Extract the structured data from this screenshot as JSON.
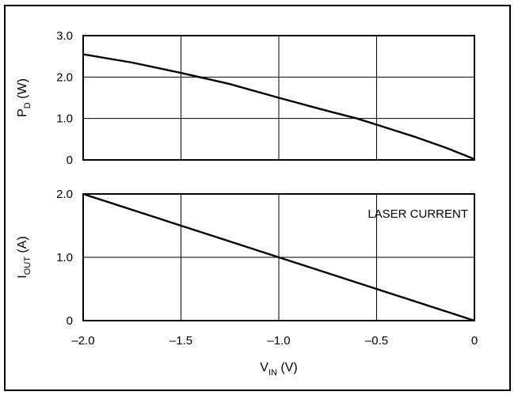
{
  "chart_data": [
    {
      "type": "line",
      "title": "",
      "ylabel": {
        "main": "P",
        "sub": "D",
        "unit": "(W)"
      },
      "xlim": [
        -2.0,
        0
      ],
      "ylim": [
        0,
        3.0
      ],
      "grid": true,
      "yticks": [
        {
          "value": 0,
          "label": "0"
        },
        {
          "value": 1.0,
          "label": "1.0"
        },
        {
          "value": 2.0,
          "label": "2.0"
        },
        {
          "value": 3.0,
          "label": "3.0"
        }
      ],
      "series": [
        {
          "x": [
            -2.0,
            -1.75,
            -1.5,
            -1.25,
            -1.0,
            -0.75,
            -0.6,
            -0.5,
            -0.3,
            -0.15,
            0
          ],
          "y": [
            2.55,
            2.35,
            2.1,
            1.83,
            1.5,
            1.18,
            1.0,
            0.85,
            0.55,
            0.3,
            0.02
          ]
        }
      ]
    },
    {
      "type": "line",
      "title": "",
      "ylabel": {
        "main": "I",
        "sub": "OUT",
        "unit": "(A)"
      },
      "xlabel": {
        "main": "V",
        "sub": "IN",
        "unit": "(V)"
      },
      "xlim": [
        -2.0,
        0
      ],
      "ylim": [
        0,
        2.0
      ],
      "grid": true,
      "annotation": "LASER CURRENT",
      "yticks": [
        {
          "value": 0,
          "label": "0"
        },
        {
          "value": 1.0,
          "label": "1.0"
        },
        {
          "value": 2.0,
          "label": "2.0"
        }
      ],
      "xticks": [
        {
          "value": -2.0,
          "label": "–2.0"
        },
        {
          "value": -1.5,
          "label": "–1.5"
        },
        {
          "value": -1.0,
          "label": "–1.0"
        },
        {
          "value": -0.5,
          "label": "–0.5"
        },
        {
          "value": 0,
          "label": "0"
        }
      ],
      "series": [
        {
          "x": [
            -2.0,
            0
          ],
          "y": [
            2.0,
            0.0
          ]
        }
      ]
    }
  ]
}
